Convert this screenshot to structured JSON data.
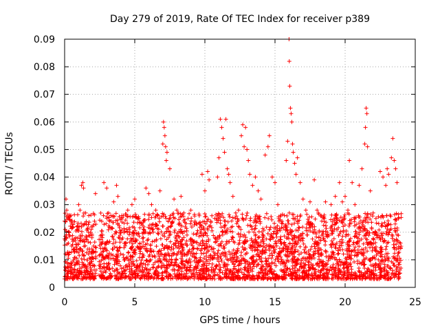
{
  "chart_data": {
    "type": "scatter",
    "title": "Day 279 of 2019, Rate Of TEC Index for receiver p389",
    "xlabel": "GPS time / hours",
    "ylabel": "ROTI / TECUs",
    "xlim": [
      0,
      25
    ],
    "ylim": [
      0,
      0.09
    ],
    "xticks": [
      0,
      5,
      10,
      15,
      20,
      25
    ],
    "xtick_labels": [
      "0",
      "5",
      "10",
      "15",
      "20",
      "25"
    ],
    "yticks": [
      0,
      0.01,
      0.02,
      0.03,
      0.04,
      0.05,
      0.06,
      0.07,
      0.08,
      0.09
    ],
    "ytick_labels": [
      "0",
      "0.01",
      "0.02",
      "0.03",
      "0.04",
      "0.05",
      "0.06",
      "0.07",
      "0.08",
      "0.09"
    ],
    "grid": true,
    "marker": "plus",
    "marker_color": "#ff0000",
    "series": [
      {
        "points": [
          [
            0.1,
            0.032
          ],
          [
            0.15,
            0.028
          ],
          [
            0.3,
            0.019
          ],
          [
            0.5,
            0.015
          ],
          [
            0.8,
            0.018
          ],
          [
            1.0,
            0.03
          ],
          [
            1.1,
            0.028
          ],
          [
            1.2,
            0.037
          ],
          [
            1.3,
            0.038
          ],
          [
            1.35,
            0.036
          ],
          [
            1.5,
            0.027
          ],
          [
            1.7,
            0.02
          ],
          [
            2.0,
            0.022
          ],
          [
            2.2,
            0.034
          ],
          [
            2.6,
            0.012
          ],
          [
            2.8,
            0.038
          ],
          [
            3.0,
            0.036
          ],
          [
            3.2,
            0.024
          ],
          [
            3.5,
            0.031
          ],
          [
            3.7,
            0.037
          ],
          [
            3.8,
            0.033
          ],
          [
            4.0,
            0.02
          ],
          [
            4.2,
            0.026
          ],
          [
            4.5,
            0.028
          ],
          [
            4.8,
            0.03
          ],
          [
            5.0,
            0.032
          ],
          [
            5.3,
            0.025
          ],
          [
            5.6,
            0.02
          ],
          [
            5.8,
            0.036
          ],
          [
            6.0,
            0.034
          ],
          [
            6.2,
            0.03
          ],
          [
            6.5,
            0.028
          ],
          [
            6.8,
            0.035
          ],
          [
            7.0,
            0.052
          ],
          [
            7.05,
            0.06
          ],
          [
            7.1,
            0.058
          ],
          [
            7.15,
            0.055
          ],
          [
            7.2,
            0.051
          ],
          [
            7.25,
            0.046
          ],
          [
            7.3,
            0.049
          ],
          [
            7.5,
            0.043
          ],
          [
            7.8,
            0.032
          ],
          [
            8.0,
            0.028
          ],
          [
            8.3,
            0.033
          ],
          [
            8.5,
            0.027
          ],
          [
            8.8,
            0.025
          ],
          [
            9.0,
            0.028
          ],
          [
            9.3,
            0.024
          ],
          [
            9.6,
            0.026
          ],
          [
            9.8,
            0.041
          ],
          [
            10.0,
            0.035
          ],
          [
            10.2,
            0.042
          ],
          [
            10.3,
            0.039
          ],
          [
            10.5,
            0.026
          ],
          [
            10.7,
            0.025
          ],
          [
            10.9,
            0.04
          ],
          [
            11.0,
            0.047
          ],
          [
            11.1,
            0.061
          ],
          [
            11.2,
            0.058
          ],
          [
            11.3,
            0.054
          ],
          [
            11.4,
            0.049
          ],
          [
            11.5,
            0.061
          ],
          [
            11.6,
            0.043
          ],
          [
            11.7,
            0.041
          ],
          [
            11.8,
            0.038
          ],
          [
            12.0,
            0.033
          ],
          [
            12.2,
            0.027
          ],
          [
            12.4,
            0.028
          ],
          [
            12.6,
            0.055
          ],
          [
            12.7,
            0.059
          ],
          [
            12.8,
            0.051
          ],
          [
            12.9,
            0.058
          ],
          [
            13.0,
            0.05
          ],
          [
            13.1,
            0.046
          ],
          [
            13.2,
            0.041
          ],
          [
            13.4,
            0.037
          ],
          [
            13.6,
            0.04
          ],
          [
            13.8,
            0.035
          ],
          [
            14.0,
            0.032
          ],
          [
            14.3,
            0.048
          ],
          [
            14.5,
            0.051
          ],
          [
            14.6,
            0.055
          ],
          [
            14.8,
            0.04
          ],
          [
            15.0,
            0.038
          ],
          [
            15.2,
            0.03
          ],
          [
            15.5,
            0.024
          ],
          [
            15.8,
            0.046
          ],
          [
            15.9,
            0.053
          ],
          [
            16.0,
            0.09
          ],
          [
            16.02,
            0.082
          ],
          [
            16.05,
            0.073
          ],
          [
            16.1,
            0.065
          ],
          [
            16.15,
            0.063
          ],
          [
            16.2,
            0.06
          ],
          [
            16.25,
            0.052
          ],
          [
            16.3,
            0.049
          ],
          [
            16.4,
            0.045
          ],
          [
            16.5,
            0.041
          ],
          [
            16.6,
            0.047
          ],
          [
            16.8,
            0.038
          ],
          [
            17.0,
            0.032
          ],
          [
            17.2,
            0.028
          ],
          [
            17.5,
            0.031
          ],
          [
            17.8,
            0.039
          ],
          [
            18.0,
            0.028
          ],
          [
            18.3,
            0.026
          ],
          [
            18.6,
            0.031
          ],
          [
            19.0,
            0.03
          ],
          [
            19.3,
            0.033
          ],
          [
            19.6,
            0.038
          ],
          [
            19.8,
            0.031
          ],
          [
            20.0,
            0.033
          ],
          [
            20.2,
            0.028
          ],
          [
            20.3,
            0.046
          ],
          [
            20.5,
            0.038
          ],
          [
            20.7,
            0.03
          ],
          [
            21.0,
            0.037
          ],
          [
            21.2,
            0.043
          ],
          [
            21.4,
            0.052
          ],
          [
            21.45,
            0.058
          ],
          [
            21.5,
            0.065
          ],
          [
            21.55,
            0.063
          ],
          [
            21.6,
            0.051
          ],
          [
            21.8,
            0.035
          ],
          [
            22.0,
            0.027
          ],
          [
            22.2,
            0.025
          ],
          [
            22.5,
            0.042
          ],
          [
            22.7,
            0.04
          ],
          [
            22.9,
            0.037
          ],
          [
            23.0,
            0.043
          ],
          [
            23.1,
            0.041
          ],
          [
            23.3,
            0.047
          ],
          [
            23.4,
            0.054
          ],
          [
            23.5,
            0.046
          ],
          [
            23.6,
            0.043
          ],
          [
            23.7,
            0.038
          ],
          [
            23.8,
            0.025
          ]
        ]
      }
    ]
  }
}
